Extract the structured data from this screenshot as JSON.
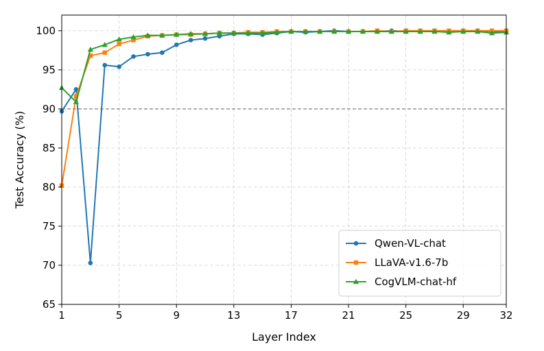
{
  "chart_data": {
    "type": "line",
    "xlabel": "Layer Index",
    "ylabel": "Test Accuracy (%)",
    "xlim": [
      1,
      32
    ],
    "ylim": [
      65,
      102
    ],
    "x_ticks": [
      1,
      5,
      9,
      13,
      17,
      21,
      25,
      29,
      32
    ],
    "y_ticks": [
      65,
      70,
      75,
      80,
      85,
      90,
      95,
      100
    ],
    "grid": true,
    "reference_line": {
      "y": 90,
      "style": "dashed",
      "color": "#808080"
    },
    "legend_position": "lower-right",
    "x": [
      1,
      2,
      3,
      4,
      5,
      6,
      7,
      8,
      9,
      10,
      11,
      12,
      13,
      14,
      15,
      16,
      17,
      18,
      19,
      20,
      21,
      22,
      23,
      24,
      25,
      26,
      27,
      28,
      29,
      30,
      31,
      32
    ],
    "series": [
      {
        "name": "Qwen-VL-chat",
        "color": "#1f77b4",
        "marker": "circle",
        "values": [
          89.7,
          92.5,
          70.3,
          95.6,
          95.4,
          96.7,
          97.0,
          97.2,
          98.2,
          98.8,
          99.0,
          99.3,
          99.6,
          99.6,
          99.5,
          99.7,
          99.9,
          99.8,
          99.9,
          100.0,
          99.9,
          99.9,
          99.9,
          100.0,
          99.9,
          99.9,
          100.0,
          99.9,
          100.0,
          100.0,
          99.9,
          99.9
        ]
      },
      {
        "name": "LLaVA-v1.6-7b",
        "color": "#ff7f0e",
        "marker": "square",
        "values": [
          80.2,
          91.6,
          96.8,
          97.2,
          98.3,
          98.8,
          99.3,
          99.4,
          99.5,
          99.5,
          99.6,
          99.7,
          99.7,
          99.8,
          99.8,
          99.9,
          99.9,
          99.9,
          99.9,
          99.9,
          99.9,
          99.9,
          100.0,
          99.9,
          100.0,
          100.0,
          100.0,
          100.0,
          100.0,
          100.0,
          100.0,
          100.0
        ]
      },
      {
        "name": "CogVLM-chat-hf",
        "color": "#2ca02c",
        "marker": "triangle",
        "values": [
          92.7,
          90.9,
          97.6,
          98.2,
          98.9,
          99.2,
          99.4,
          99.4,
          99.5,
          99.6,
          99.6,
          99.7,
          99.7,
          99.7,
          99.7,
          99.8,
          99.9,
          99.9,
          99.9,
          99.9,
          99.9,
          99.9,
          99.9,
          99.9,
          99.9,
          99.9,
          99.9,
          99.8,
          99.9,
          99.9,
          99.7,
          99.8
        ]
      }
    ]
  }
}
